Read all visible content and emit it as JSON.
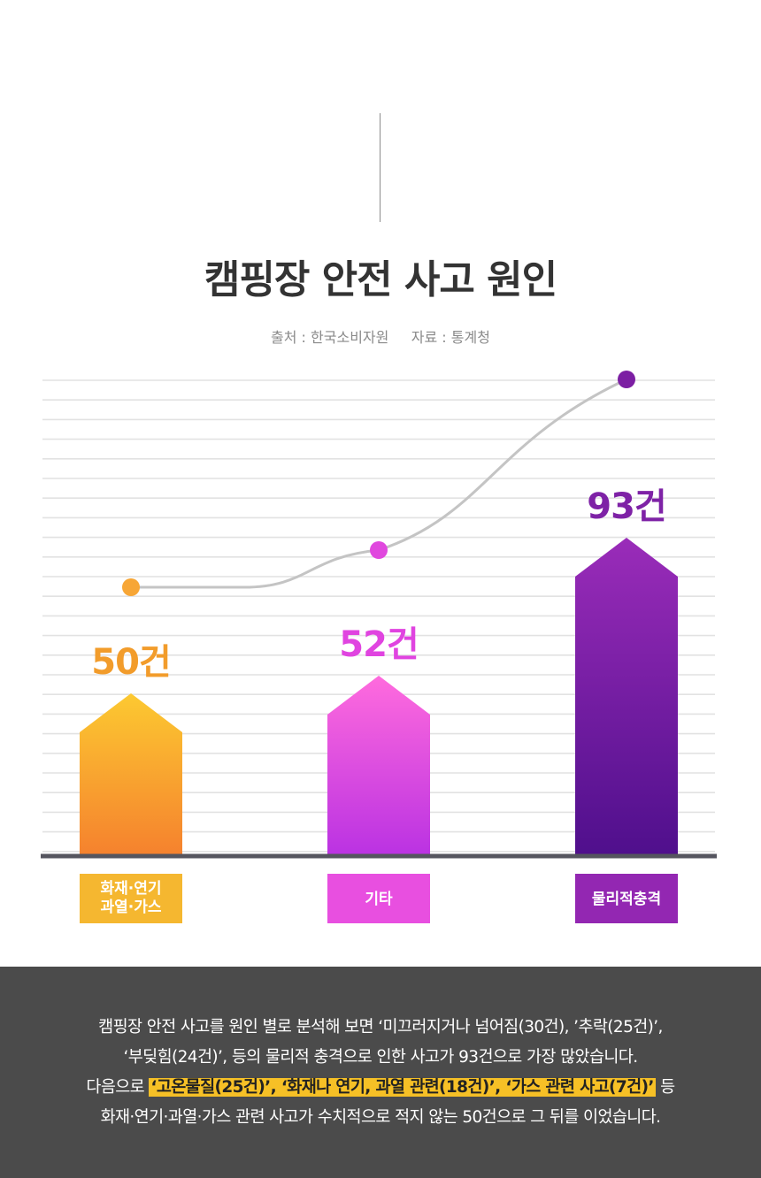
{
  "page": {
    "title": "캠핑장 안전 사고 원인",
    "source": "출처 : 한국소비자원     자료 : 통계청"
  },
  "chart_data": {
    "type": "bar",
    "title": "캠핑장 안전 사고 원인",
    "categories": [
      "화재·연기·과열·가스",
      "기타",
      "물리적충격"
    ],
    "category_label_lines": [
      [
        "화재·연기",
        "과열·가스"
      ],
      [
        "기타"
      ],
      [
        "물리적충격"
      ]
    ],
    "values": [
      50,
      52,
      93
    ],
    "value_labels": [
      "50건",
      "52건",
      "93건"
    ],
    "unit": "건",
    "ylim": [
      0,
      100
    ],
    "grid": true,
    "trend_line": true,
    "colors": {
      "bars": [
        [
          "#fcc931",
          "#f5812e"
        ],
        [
          "#ff6bdd",
          "#ba32e2"
        ],
        [
          "#9a2cb9",
          "#4f0f8c"
        ]
      ],
      "value_labels": [
        "#f29c2b",
        "#e044e0",
        "#7e22a6"
      ],
      "label_boxes": [
        "#f5b730",
        "#e84fe0",
        "#9327b2"
      ],
      "trend_line": "#c4c4c4",
      "trend_points": [
        "#f7a636",
        "#e048de",
        "#7c1fa3"
      ],
      "axis": "#55555f",
      "grid": "#e2e2e2"
    }
  },
  "footer": {
    "line1": "캠핑장 안전 사고를 원인 별로 분석해 보면 ‘미끄러지거나 넘어짐(30건), ’추락(25건)’,",
    "line2": "‘부딪힘(24건)’, 등의 물리적 충격으로 인한 사고가 93건으로 가장 많았습니다.",
    "line3_prefix": "다음으로",
    "line3_highlight": "‘고온물질(25건)’, ‘화재나 연기, 과열 관련(18건)’, ‘가스 관련 사고(7건)’",
    "line3_suffix": "등",
    "line4": "화재·연기·과열·가스 관련 사고가 수치적으로 적지 않는 50건으로 그 뒤를 이었습니다."
  }
}
